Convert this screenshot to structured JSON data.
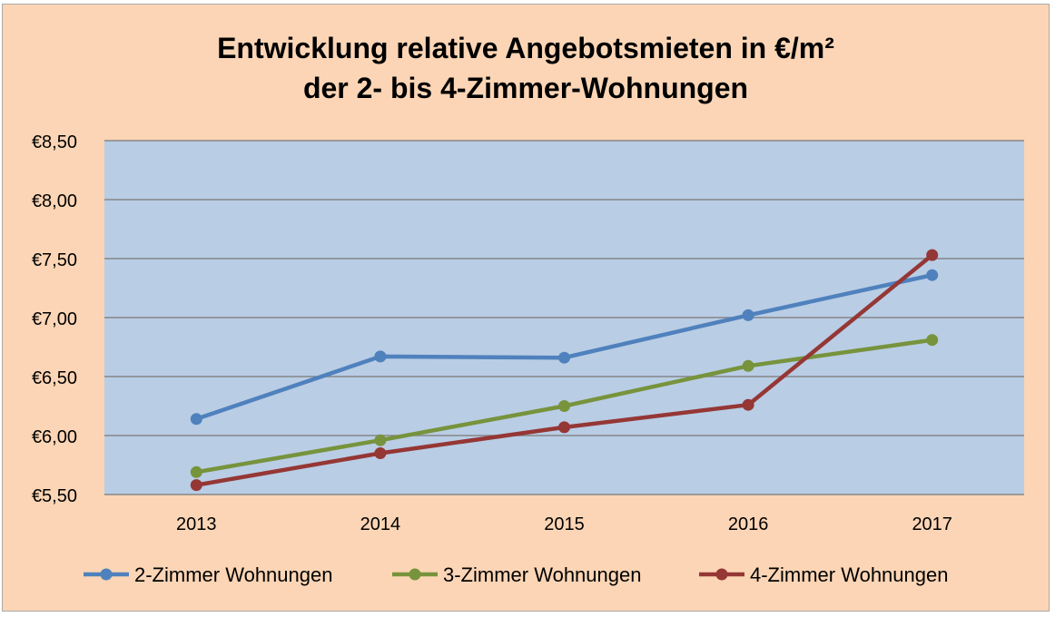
{
  "chart_data": {
    "type": "line",
    "title_lines": [
      "Entwicklung relative Angebotsmieten in €/m²",
      "der 2- bis 4-Zimmer-Wohnungen"
    ],
    "categories": [
      "2013",
      "2014",
      "2015",
      "2016",
      "2017"
    ],
    "series": [
      {
        "name": "2-Zimmer Wohnungen",
        "color": "#4f81bd",
        "values": [
          6.14,
          6.67,
          6.66,
          7.02,
          7.36
        ]
      },
      {
        "name": "3-Zimmer Wohnungen",
        "color": "#77933c",
        "values": [
          5.69,
          5.96,
          6.25,
          6.59,
          6.81
        ]
      },
      {
        "name": "4-Zimmer Wohnungen",
        "color": "#953735",
        "values": [
          5.58,
          5.85,
          6.07,
          6.26,
          7.53
        ]
      }
    ],
    "yticks": [
      "€5,50",
      "€6,00",
      "€6,50",
      "€7,00",
      "€7,50",
      "€8,00",
      "€8,50"
    ],
    "ylim": [
      5.5,
      8.5
    ],
    "grid": true,
    "legend_position": "bottom",
    "plot_background": "#b9cde5",
    "chart_background": "#fbd5b5"
  }
}
